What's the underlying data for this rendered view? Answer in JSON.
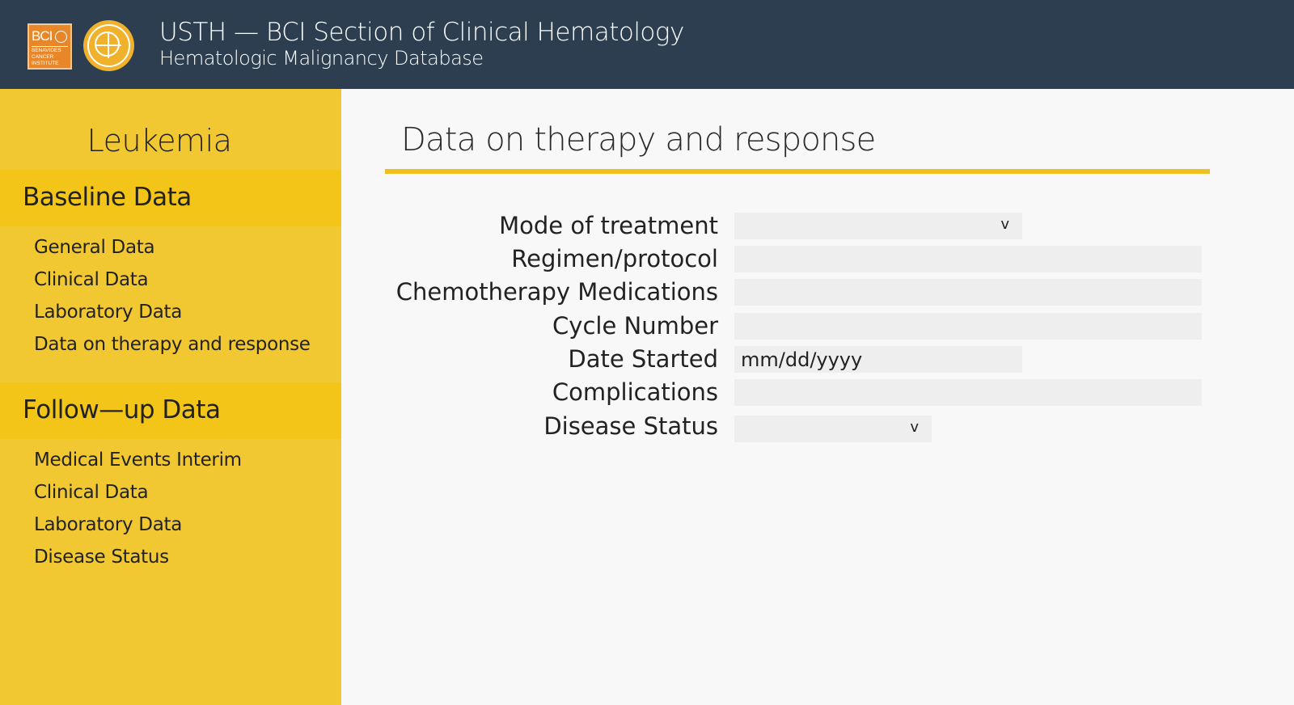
{
  "header": {
    "title": "USTH — BCI Section of Clinical Hematology",
    "subtitle": "Hematologic Malignancy Database",
    "logo_bci_text": "BCI",
    "logo_bci_small": [
      "BENAVIDES",
      "CANCER",
      "INSTITUTE"
    ]
  },
  "sidebar": {
    "title": "Leukemia",
    "sections": [
      {
        "label": "Baseline Data",
        "items": [
          "General Data",
          "Clinical Data",
          "Laboratory Data",
          "Data on therapy and response"
        ]
      },
      {
        "label": "Follow—up Data",
        "items": [
          "Medical Events Interim",
          "Clinical Data",
          "Laboratory Data",
          "Disease Status"
        ]
      }
    ]
  },
  "main": {
    "title": "Data on therapy and response",
    "form": {
      "mode_of_treatment_label": "Mode of treatment",
      "regimen_label": "Regimen/protocol",
      "chemo_label": "Chemotherapy Medications",
      "cycle_label": "Cycle Number",
      "date_label": "Date Started",
      "date_placeholder": "mm/dd/yyyy",
      "complications_label": "Complications",
      "disease_status_label": "Disease Status",
      "chevron_glyph": "v"
    }
  },
  "colors": {
    "header_bg": "#2d3e50",
    "sidebar_bg": "#f2c832",
    "section_bg": "#f2c518",
    "accent": "#f0c020",
    "field_bg": "#eeeeee"
  }
}
